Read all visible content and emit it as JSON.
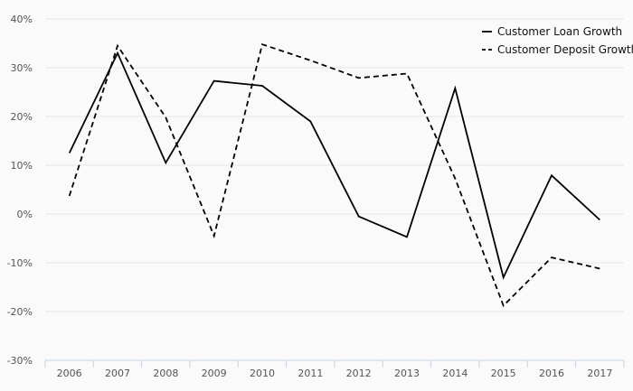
{
  "chart_data": {
    "type": "line",
    "x": [
      "2006",
      "2007",
      "2008",
      "2009",
      "2010",
      "2011",
      "2012",
      "2013",
      "2014",
      "2015",
      "2016",
      "2017"
    ],
    "series": [
      {
        "name": "Customer Loan Growth",
        "values": [
          12.5,
          33.0,
          10.5,
          27.3,
          26.3,
          19.0,
          -0.5,
          -4.7,
          25.8,
          -13.0,
          7.9,
          -1.2
        ],
        "color": "#000000",
        "dash": "solid"
      },
      {
        "name": "Customer Deposit Growth",
        "values": [
          3.7,
          34.5,
          19.8,
          -4.5,
          34.8,
          31.5,
          27.9,
          28.8,
          7.3,
          -18.8,
          -8.9,
          -11.2
        ],
        "color": "#000000",
        "dash": "dashed"
      }
    ],
    "yticks": [
      -30,
      -20,
      -10,
      0,
      10,
      20,
      30,
      40
    ],
    "ytick_labels": [
      "-30%",
      "-20%",
      "-10%",
      "0%",
      "10%",
      "20%",
      "30%",
      "40%"
    ],
    "ylim": [
      -30,
      40
    ],
    "grid": true,
    "legend_position": "top-right",
    "title": "",
    "xlabel": "",
    "ylabel": ""
  }
}
